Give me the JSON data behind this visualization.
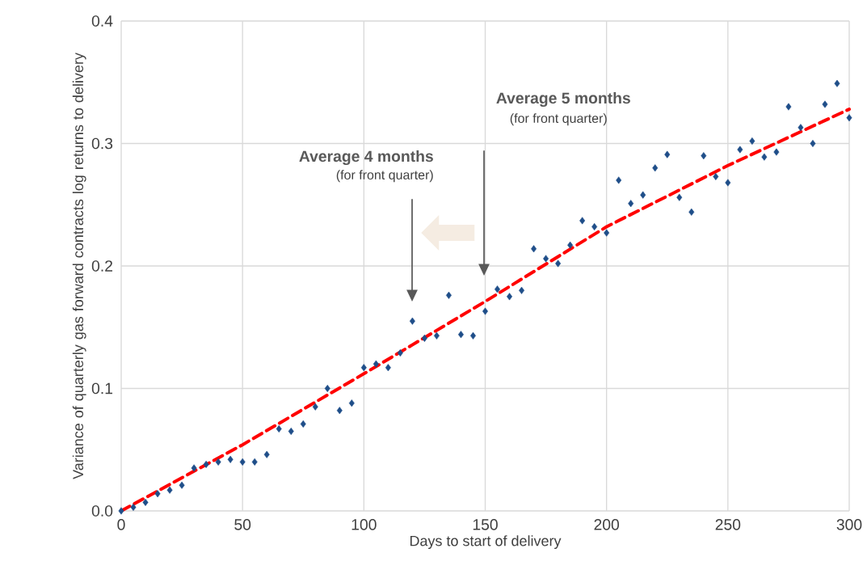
{
  "chart_data": {
    "type": "scatter",
    "xlabel": "Days to start of delivery",
    "ylabel": "Variance of quarterly gas forward contracts log returns to delivery",
    "xlim": [
      0,
      300
    ],
    "ylim": [
      0,
      0.4
    ],
    "xticks": [
      0,
      50,
      100,
      150,
      200,
      250,
      300
    ],
    "yticks": [
      {
        "value": 0,
        "label": "0.0"
      },
      {
        "value": 0.1,
        "label": "0.1"
      },
      {
        "value": 0.2,
        "label": "0.2"
      },
      {
        "value": 0.3,
        "label": "0.3"
      },
      {
        "value": 0.4,
        "label": "0.4"
      }
    ],
    "grid": true,
    "marker": "diamond",
    "series": [
      {
        "color": "#1f4e89",
        "x": [
          0,
          5,
          10,
          15,
          20,
          25,
          30,
          35,
          40,
          45,
          50,
          55,
          60,
          65,
          70,
          75,
          80,
          85,
          90,
          95,
          100,
          105,
          110,
          115,
          120,
          125,
          130,
          135,
          140,
          145,
          150,
          155,
          160,
          165,
          170,
          175,
          180,
          185,
          190,
          195,
          200,
          205,
          210,
          215,
          220,
          225,
          230,
          235,
          240,
          245,
          250,
          255,
          260,
          265,
          270,
          275,
          280,
          285,
          290,
          295,
          300
        ],
        "values": [
          0,
          0.003,
          0.007,
          0.014,
          0.017,
          0.021,
          0.035,
          0.038,
          0.04,
          0.042,
          0.04,
          0.04,
          0.046,
          0.067,
          0.065,
          0.071,
          0.085,
          0.1,
          0.082,
          0.088,
          0.117,
          0.12,
          0.117,
          0.129,
          0.155,
          0.141,
          0.143,
          0.176,
          0.144,
          0.143,
          0.163,
          0.181,
          0.175,
          0.18,
          0.214,
          0.206,
          0.202,
          0.217,
          0.237,
          0.232,
          0.227,
          0.27,
          0.251,
          0.258,
          0.28,
          0.291,
          0.256,
          0.244,
          0.29,
          0.273,
          0.268,
          0.295,
          0.302,
          0.289,
          0.293,
          0.33,
          0.313,
          0.3,
          0.332,
          0.349,
          0.321
        ]
      },
      {
        "type": "line",
        "color": "#ff0000",
        "line_style": "dashed",
        "marker": "none",
        "x": [
          0,
          50,
          100,
          150,
          200,
          250,
          300
        ],
        "values": [
          0,
          0.054,
          0.112,
          0.171,
          0.232,
          0.282,
          0.328
        ]
      }
    ],
    "annotations": [
      "Average 4 months",
      "(for front quarter)",
      "Average 5 months",
      "(for front quarter)"
    ]
  }
}
